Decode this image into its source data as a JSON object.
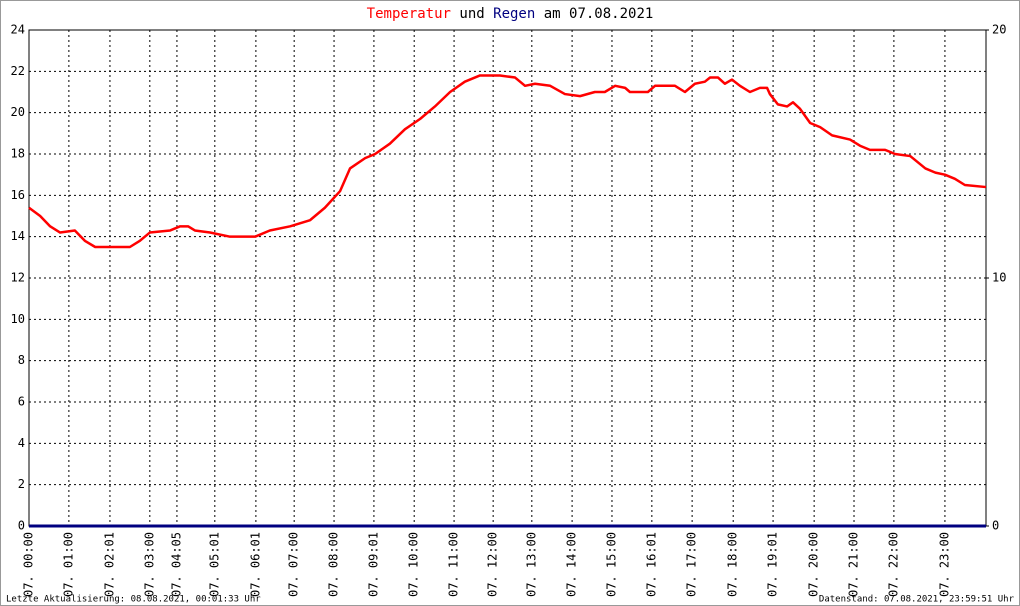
{
  "chart_data": {
    "type": "line",
    "title_joiner": "und",
    "title_suffix": "am 07.08.2021",
    "xlim": [
      0,
      24
    ],
    "xticks": [
      {
        "value": 0,
        "label": "07. 00:00"
      },
      {
        "value": 1.0,
        "label": "07. 01:00"
      },
      {
        "value": 2.03,
        "label": "07. 02:01"
      },
      {
        "value": 3.03,
        "label": "07. 03:00"
      },
      {
        "value": 3.71,
        "label": "07. 04:05"
      },
      {
        "value": 4.66,
        "label": "07. 05:01"
      },
      {
        "value": 5.69,
        "label": "07. 06:01"
      },
      {
        "value": 6.65,
        "label": "07. 07:00"
      },
      {
        "value": 7.65,
        "label": "07. 08:00"
      },
      {
        "value": 8.65,
        "label": "07. 09:01"
      },
      {
        "value": 9.66,
        "label": "07. 10:00"
      },
      {
        "value": 10.66,
        "label": "07. 11:00"
      },
      {
        "value": 11.64,
        "label": "07. 12:00"
      },
      {
        "value": 12.61,
        "label": "07. 13:00"
      },
      {
        "value": 13.62,
        "label": "07. 14:00"
      },
      {
        "value": 14.62,
        "label": "07. 15:00"
      },
      {
        "value": 15.62,
        "label": "07. 16:01"
      },
      {
        "value": 16.63,
        "label": "07. 17:00"
      },
      {
        "value": 17.66,
        "label": "07. 18:00"
      },
      {
        "value": 18.66,
        "label": "07. 19:01"
      },
      {
        "value": 19.69,
        "label": "07. 20:00"
      },
      {
        "value": 20.69,
        "label": "07. 21:00"
      },
      {
        "value": 21.69,
        "label": "07. 22:00"
      },
      {
        "value": 22.97,
        "label": "07. 23:00"
      }
    ],
    "ylim": [
      0,
      24
    ],
    "yticks": [
      0,
      2,
      4,
      6,
      8,
      10,
      12,
      14,
      16,
      18,
      20,
      22,
      24
    ],
    "y2lim": [
      0,
      20
    ],
    "y2ticks": [
      0,
      10,
      20
    ],
    "grid": true,
    "series": [
      {
        "name": "Temperatur",
        "color": "#ff0000",
        "x": [
          0,
          0.28,
          0.53,
          0.78,
          1.15,
          1.4,
          1.66,
          2.03,
          2.53,
          2.78,
          3.03,
          3.54,
          3.79,
          3.99,
          4.16,
          4.54,
          5.04,
          5.67,
          6.04,
          6.55,
          7.05,
          7.42,
          7.8,
          8.05,
          8.43,
          8.68,
          9.05,
          9.43,
          9.81,
          10.18,
          10.56,
          10.93,
          11.31,
          11.81,
          12.19,
          12.44,
          12.69,
          13.07,
          13.44,
          13.82,
          14.19,
          14.44,
          14.7,
          14.95,
          15.07,
          15.52,
          15.7,
          16.2,
          16.45,
          16.7,
          16.95,
          17.08,
          17.28,
          17.45,
          17.63,
          17.83,
          18.08,
          18.33,
          18.51,
          18.58,
          18.78,
          19.01,
          19.16,
          19.33,
          19.59,
          19.84,
          20.14,
          20.59,
          20.84,
          21.09,
          21.47,
          21.72,
          22.1,
          22.48,
          22.73,
          22.97,
          23.22,
          23.47,
          24.0
        ],
        "values": [
          15.4,
          15.0,
          14.5,
          14.2,
          14.3,
          13.8,
          13.5,
          13.5,
          13.5,
          13.8,
          14.2,
          14.3,
          14.5,
          14.5,
          14.3,
          14.2,
          14.0,
          14.0,
          14.3,
          14.5,
          14.8,
          15.4,
          16.2,
          17.3,
          17.8,
          18.0,
          18.5,
          19.2,
          19.7,
          20.3,
          21.0,
          21.5,
          21.8,
          21.8,
          21.7,
          21.3,
          21.4,
          21.3,
          20.9,
          20.8,
          21.0,
          21.0,
          21.3,
          21.2,
          21.0,
          21.0,
          21.3,
          21.3,
          21.0,
          21.4,
          21.5,
          21.7,
          21.7,
          21.4,
          21.6,
          21.3,
          21.0,
          21.2,
          21.2,
          20.9,
          20.4,
          20.3,
          20.5,
          20.2,
          19.5,
          19.3,
          18.9,
          18.7,
          18.4,
          18.2,
          18.2,
          18.0,
          17.9,
          17.3,
          17.1,
          17.0,
          16.8,
          16.5,
          16.4
        ]
      },
      {
        "name": "Regen",
        "color": "#000080",
        "axis": "y2",
        "x": [
          0,
          24
        ],
        "values": [
          0,
          0
        ]
      }
    ],
    "footer_left": "Letzte Aktualisierung: 08.08.2021, 00:01:33 Uhr",
    "footer_right": "Datenstand: 07.08.2021, 23:59:51 Uhr"
  }
}
